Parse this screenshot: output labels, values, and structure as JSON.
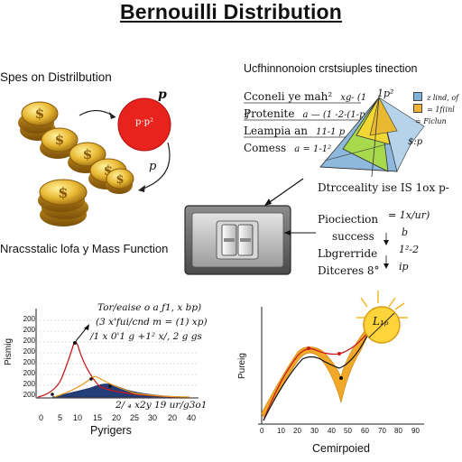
{
  "title": "Bernouilli Distribution",
  "left_panel": {
    "heading": "Spes on Distrilbution",
    "circle_label": "p·p²",
    "p_top": "p",
    "p_mid": "p",
    "footer": "Nracsstalic lofa y Mass Function"
  },
  "right_panel": {
    "heading": "Ucfhinnonoion crstsiuples tinection",
    "rows": [
      {
        "label": "Cconeli ye mah²",
        "formula": "xg- (1 ·j"
      },
      {
        "label": "Protenite",
        "formula": "a — (1 -2-(1-p"
      },
      {
        "label": "Leampia an",
        "formula": "11-1 p"
      },
      {
        "label": "Comess",
        "formula": "a = 1-1²"
      }
    ],
    "prism_label_top": "1p²",
    "side_label": "$:p",
    "legend": [
      {
        "text": "z lind, of",
        "color": "#7fb2dd"
      },
      {
        "text": "= 1f(inl",
        "color": "#f2b233"
      },
      {
        "text": "= Ficlun",
        "color": ""
      }
    ],
    "caption": "Dtrcceality ise IS 1ox p-"
  },
  "switch_panel": {
    "rows": [
      {
        "label": "Piociection",
        "value": "= 1x/ur)"
      },
      {
        "label": "success",
        "value": "b"
      },
      {
        "label": "Lbgrerride",
        "value": "1²-2"
      },
      {
        "label": "Ditceres 8°",
        "value": "ip"
      }
    ]
  },
  "chart_left": {
    "ylabel": "Pismig",
    "xlabel": "Pyrigers",
    "yticks": [
      "200",
      "200",
      "200",
      "200",
      "200",
      "200",
      "200",
      "200"
    ],
    "xticks": [
      "0",
      "5",
      "10",
      "15",
      "20",
      "25",
      "30",
      "20",
      "40"
    ],
    "annotations": [
      "Tor/eaise o a  ƒ1, x bp)",
      "(3 x'fui/cnd m = (1) xp)",
      "/1 x 0'1 g +1² x/, 2 g gs",
      "2/ ₄ x2y 19 ur/g3o1"
    ]
  },
  "chart_right": {
    "ylabel": "Pureig",
    "xlabel": "Cemirpoied",
    "xticks": [
      "0",
      "10",
      "20",
      "30",
      "40",
      "50",
      "60",
      "70",
      "80",
      "90"
    ],
    "sun_label": "L₁ₚ"
  }
}
